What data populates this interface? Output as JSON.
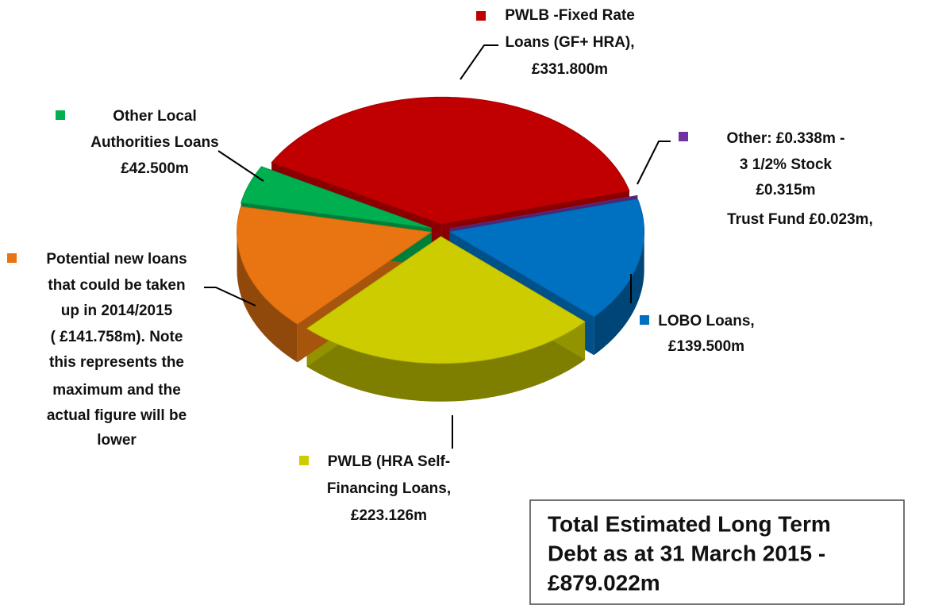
{
  "chart_data": {
    "type": "pie3d",
    "categories": [
      "PWLB -Fixed Rate Loans (GF+ HRA)",
      "Other",
      "LOBO Loans",
      "PWLB (HRA Self-Financing Loans",
      "Potential new loans",
      "Other Local Authorities Loans"
    ],
    "values": [
      331.8,
      0.338,
      139.5,
      223.126,
      141.758,
      42.5
    ],
    "colors": [
      "#c00000",
      "#7030a0",
      "#0070c0",
      "#cccc00",
      "#e87511",
      "#00b050"
    ],
    "labels": [
      [
        "PWLB -Fixed Rate",
        "Loans (GF+ HRA),",
        "£331.800m"
      ],
      [
        "Other: £0.338m -",
        "3 1/2% Stock",
        "£0.315m",
        "Trust Fund £0.023m,"
      ],
      [
        "LOBO Loans,",
        "£139.500m"
      ],
      [
        "PWLB (HRA Self-",
        "Financing Loans,",
        "£223.126m"
      ],
      [
        "Potential new loans",
        "that could be taken",
        "up in 2014/2015",
        "( £141.758m).  Note",
        "this represents the",
        "maximum and the",
        "actual figure will be",
        "lower"
      ],
      [
        "Other Local",
        "Authorities Loans",
        "£42.500m"
      ]
    ],
    "text_box": [
      "Total Estimated Long Term",
      "Debt as at 31 March 2015 -",
      "£879.022m"
    ]
  }
}
